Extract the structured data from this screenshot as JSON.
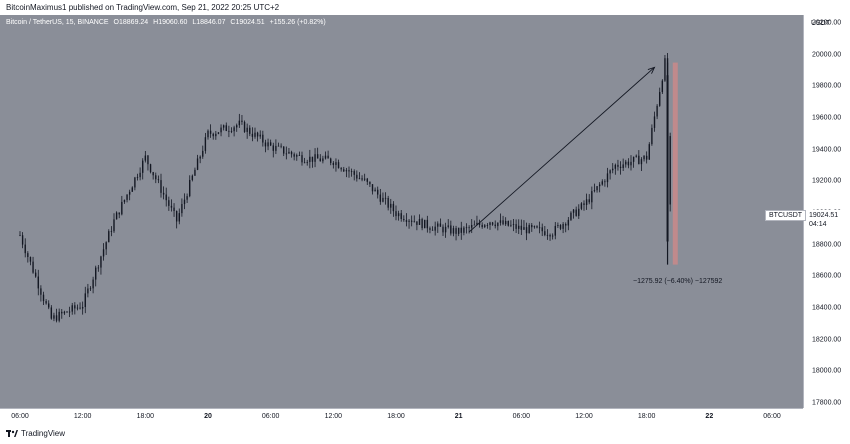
{
  "header": "BitcoinMaximus1 published on TradingView.com, Sep 21, 2022 20:25 UTC+2",
  "legend": {
    "pair": "Bitcoin / TetherUS, 15, BINANCE",
    "o": "O18869.24",
    "h": "H19060.60",
    "l": "L18846.07",
    "c": "C19024.51",
    "change": "+155.26 (+0.82%)"
  },
  "colors": {
    "background": "#8a8e98",
    "candle": "#131722",
    "arrow": "#131722",
    "highlight": "#c98a8a"
  },
  "price_tag": {
    "symbol": "BTCUSDT",
    "price": "19024.51",
    "countdown": "04:14"
  },
  "measure_label": "−1275.92 (−6.40%) −127592",
  "footer": {
    "brand": "TradingView",
    "logo_icon": "tradingview-logo-icon"
  },
  "chart_data": {
    "type": "candlestick",
    "unit": "USDT",
    "ylim": [
      17800,
      20200
    ],
    "y_ticks": [
      "20200.00",
      "20000.00",
      "19800.00",
      "19600.00",
      "19400.00",
      "19200.00",
      "19000.00",
      "18800.00",
      "18600.00",
      "18400.00",
      "18200.00",
      "18000.00",
      "17800.00"
    ],
    "x_ticks": [
      "06:00",
      "12:00",
      "18:00",
      "20",
      "06:00",
      "12:00",
      "18:00",
      "21",
      "06:00",
      "12:00",
      "18:00",
      "22",
      "06:00"
    ],
    "day_labels": [
      "20",
      "21",
      "22"
    ],
    "grid": false,
    "series": [
      {
        "t": "Sep 19 06:00",
        "close": 18860
      },
      {
        "t": "Sep 19 09:00",
        "close": 18330
      },
      {
        "t": "Sep 19 12:00",
        "close": 18420
      },
      {
        "t": "Sep 19 15:00",
        "close": 18950
      },
      {
        "t": "Sep 19 18:00",
        "close": 19350
      },
      {
        "t": "Sep 19 21:00",
        "close": 18950
      },
      {
        "t": "Sep 20 00:00",
        "close": 19500
      },
      {
        "t": "Sep 20 03:00",
        "close": 19560
      },
      {
        "t": "Sep 20 06:00",
        "close": 19420
      },
      {
        "t": "Sep 20 09:00",
        "close": 19350
      },
      {
        "t": "Sep 20 12:00",
        "close": 19330
      },
      {
        "t": "Sep 20 15:00",
        "close": 19200
      },
      {
        "t": "Sep 20 18:00",
        "close": 19000
      },
      {
        "t": "Sep 20 21:00",
        "close": 18920
      },
      {
        "t": "Sep 21 00:00",
        "close": 18880
      },
      {
        "t": "Sep 21 03:00",
        "close": 18950
      },
      {
        "t": "Sep 21 06:00",
        "close": 18900
      },
      {
        "t": "Sep 21 09:00",
        "close": 18880
      },
      {
        "t": "Sep 21 12:00",
        "close": 19050
      },
      {
        "t": "Sep 21 15:00",
        "close": 19300
      },
      {
        "t": "Sep 21 18:00",
        "close": 19350
      },
      {
        "t": "Sep 21 19:45",
        "close": 19950
      },
      {
        "t": "Sep 21 20:15",
        "close": 19024.51
      }
    ],
    "annotations": {
      "arrow": {
        "from": {
          "t": "Sep 21 01:00",
          "price": 18880
        },
        "to": {
          "t": "Sep 21 18:45",
          "price": 19920
        }
      },
      "measure_range": {
        "high": 19950,
        "low": 18674,
        "change": -1275.92,
        "change_pct": -6.4
      }
    }
  }
}
